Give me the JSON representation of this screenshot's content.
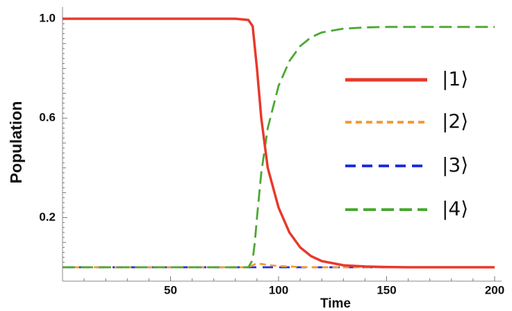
{
  "chart_data": {
    "type": "line",
    "title": "",
    "xlabel": "Time",
    "ylabel": "Population",
    "xlim": [
      0,
      200
    ],
    "ylim": [
      0.0,
      1.0
    ],
    "x_ticks": [
      50,
      100,
      150,
      200
    ],
    "x_tick_labels": [
      "50",
      "100",
      "150",
      "200"
    ],
    "y_ticks": [
      0.2,
      0.6,
      1.0
    ],
    "y_tick_labels": [
      "0.2",
      "0.6",
      "1.0"
    ],
    "grid": false,
    "legend_position": "right",
    "series": [
      {
        "name": "|1⟩",
        "color": "#e8392b",
        "dash": "solid",
        "x": [
          0,
          80,
          86,
          88,
          90,
          92,
          95,
          100,
          105,
          110,
          115,
          120,
          130,
          140,
          150,
          160,
          200
        ],
        "y": [
          1.0,
          1.0,
          0.995,
          0.97,
          0.8,
          0.6,
          0.4,
          0.24,
          0.14,
          0.08,
          0.045,
          0.025,
          0.008,
          0.003,
          0.001,
          0.0,
          0.0
        ]
      },
      {
        "name": "|2⟩",
        "color": "#f39b3b",
        "dash": "short-dash",
        "x": [
          0,
          86,
          88,
          90,
          93,
          96,
          100,
          105,
          110,
          120,
          200
        ],
        "y": [
          0.0,
          0.0,
          0.008,
          0.015,
          0.012,
          0.008,
          0.005,
          0.003,
          0.001,
          0.0,
          0.0
        ]
      },
      {
        "name": "|3⟩",
        "color": "#1f2fe0",
        "dash": "dash",
        "x": [
          0,
          200
        ],
        "y": [
          0.0,
          0.0
        ]
      },
      {
        "name": "|4⟩",
        "color": "#4aa832",
        "dash": "long-dash",
        "x": [
          0,
          86,
          88,
          89,
          90,
          92,
          95,
          100,
          105,
          110,
          115,
          120,
          130,
          140,
          150,
          160,
          180,
          200
        ],
        "y": [
          0.0,
          0.0,
          0.03,
          0.1,
          0.2,
          0.38,
          0.56,
          0.73,
          0.83,
          0.89,
          0.925,
          0.945,
          0.96,
          0.965,
          0.967,
          0.967,
          0.967,
          0.967
        ]
      }
    ]
  }
}
